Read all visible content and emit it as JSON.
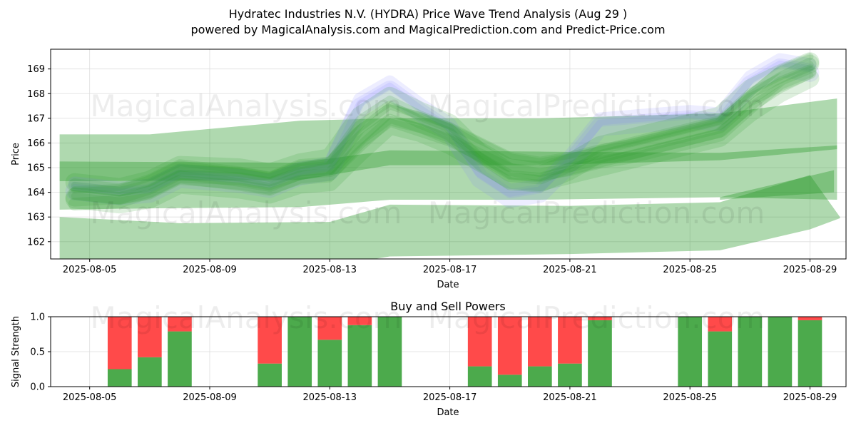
{
  "header": {
    "title_line1": "Hydratec Industries N.V. (HYDRA) Price Wave Trend Analysis (Aug 29 )",
    "title_line2": "powered by MagicalAnalysis.com and MagicalPrediction.com and Predict-Price.com"
  },
  "watermarks": [
    "MagicalAnalysis.com",
    "MagicalPrediction.com"
  ],
  "colors": {
    "green": "#2e9a2e",
    "blue": "#7f7fff",
    "buy": "#4caa4c",
    "sell": "#ff4a4a",
    "grid": "#dddddd"
  },
  "chart_data": [
    {
      "type": "area",
      "title": "",
      "xlabel": "Date",
      "ylabel": "Price",
      "xlim": [
        "2025-08-04",
        "2025-08-30"
      ],
      "ylim": [
        161.3,
        169.8
      ],
      "x_ticks": [
        "2025-08-05",
        "2025-08-09",
        "2025-08-13",
        "2025-08-17",
        "2025-08-21",
        "2025-08-25",
        "2025-08-29"
      ],
      "y_ticks": [
        162,
        163,
        164,
        165,
        166,
        167,
        168,
        169
      ],
      "grid": true,
      "bands": [
        {
          "name": "",
          "color": "green",
          "x": [
            "2025-08-04",
            "2025-08-07",
            "2025-08-12",
            "2025-08-15",
            "2025-08-20",
            "2025-08-26",
            "2025-08-29.9"
          ],
          "upper": [
            166.35,
            166.35,
            166.9,
            167.0,
            167.0,
            167.2,
            167.8
          ],
          "lower": [
            163.3,
            163.35,
            163.4,
            163.7,
            163.7,
            163.8,
            163.7
          ]
        },
        {
          "name": "",
          "color": "green",
          "x": [
            "2025-08-04",
            "2025-08-08",
            "2025-08-13",
            "2025-08-15",
            "2025-08-21",
            "2025-08-26",
            "2025-08-29",
            "2025-08-30"
          ],
          "upper": [
            163.0,
            162.75,
            162.8,
            163.5,
            163.45,
            163.6,
            164.7,
            163.0
          ],
          "lower": [
            161.2,
            160.9,
            161.0,
            161.4,
            161.5,
            161.65,
            162.5,
            162.95
          ]
        },
        {
          "name": "",
          "color": "green",
          "x": [
            "2025-08-04",
            "2025-08-12",
            "2025-08-15",
            "2025-08-20",
            "2025-08-26",
            "2025-08-29.9"
          ],
          "upper": [
            165.25,
            165.2,
            165.7,
            165.65,
            165.6,
            165.9
          ],
          "lower": [
            164.45,
            164.5,
            165.1,
            165.1,
            165.3,
            165.75
          ]
        },
        {
          "name": "",
          "color": "green",
          "x": [
            "2025-08-26",
            "2025-08-29.8"
          ],
          "upper": [
            163.8,
            164.9
          ],
          "lower": [
            163.7,
            164.0
          ]
        }
      ],
      "price_waves": {
        "x": [
          "2025-08-04.5",
          "2025-08-06",
          "2025-08-07",
          "2025-08-08",
          "2025-08-10",
          "2025-08-11",
          "2025-08-12",
          "2025-08-13",
          "2025-08-14",
          "2025-08-15",
          "2025-08-16",
          "2025-08-17",
          "2025-08-18",
          "2025-08-19",
          "2025-08-20",
          "2025-08-21",
          "2025-08-22",
          "2025-08-23",
          "2025-08-24",
          "2025-08-25",
          "2025-08-26",
          "2025-08-27",
          "2025-08-28",
          "2025-08-29"
        ],
        "series": [
          {
            "name": "",
            "color": "blue",
            "values": [
              164.2,
              164.0,
              164.1,
              164.7,
              164.5,
              164.3,
              164.8,
              165.0,
              167.6,
              168.3,
              167.4,
              166.6,
              164.7,
              163.9,
              164.1,
              165.3,
              166.8,
              166.9,
              167.0,
              167.1,
              167.0,
              168.5,
              169.2,
              169.0
            ]
          },
          {
            "name": "",
            "color": "green",
            "values": [
              164.1,
              163.9,
              164.2,
              164.8,
              164.7,
              164.5,
              164.9,
              165.1,
              166.8,
              167.6,
              167.0,
              166.5,
              165.3,
              164.5,
              164.4,
              164.9,
              165.6,
              165.9,
              166.2,
              166.5,
              166.8,
              167.9,
              168.5,
              169.0
            ]
          },
          {
            "name": "",
            "color": "green",
            "values": [
              164.0,
              163.8,
              164.0,
              164.6,
              164.4,
              164.2,
              164.6,
              164.7,
              165.9,
              167.0,
              166.7,
              166.2,
              165.5,
              164.8,
              164.7,
              165.0,
              165.3,
              165.6,
              165.9,
              166.2,
              166.5,
              167.5,
              168.3,
              168.9
            ]
          },
          {
            "name": "",
            "color": "green",
            "values": [
              163.8,
              163.9,
              164.3,
              164.9,
              164.6,
              164.4,
              164.9,
              165.0,
              166.3,
              167.2,
              166.8,
              166.4,
              165.8,
              165.2,
              165.0,
              165.2,
              165.5,
              165.7,
              166.0,
              166.3,
              166.6,
              167.7,
              168.7,
              169.2
            ]
          }
        ]
      }
    },
    {
      "type": "bar",
      "title": "Buy and Sell Powers",
      "xlabel": "Date",
      "ylabel": "Signal Strength",
      "xlim": [
        "2025-08-04",
        "2025-08-30"
      ],
      "ylim": [
        0,
        1.0
      ],
      "x_ticks": [
        "2025-08-05",
        "2025-08-09",
        "2025-08-13",
        "2025-08-17",
        "2025-08-21",
        "2025-08-25",
        "2025-08-29"
      ],
      "y_ticks": [
        "0.0",
        "0.5",
        "1.0"
      ],
      "grid": true,
      "dates": [
        "2025-08-06",
        "2025-08-07",
        "2025-08-08",
        "2025-08-11",
        "2025-08-12",
        "2025-08-13",
        "2025-08-14",
        "2025-08-15",
        "2025-08-18",
        "2025-08-19",
        "2025-08-20",
        "2025-08-21",
        "2025-08-22",
        "2025-08-25",
        "2025-08-26",
        "2025-08-27",
        "2025-08-28",
        "2025-08-29"
      ],
      "series": [
        {
          "name": "",
          "color": "buy",
          "values": [
            0.25,
            0.42,
            0.79,
            0.33,
            1.0,
            0.67,
            0.88,
            1.0,
            0.29,
            0.17,
            0.29,
            0.33,
            0.95,
            1.0,
            0.79,
            1.0,
            1.0,
            0.95
          ]
        },
        {
          "name": "",
          "color": "sell",
          "values": [
            0.75,
            0.58,
            0.21,
            0.67,
            0.0,
            0.33,
            0.12,
            0.0,
            0.71,
            0.83,
            0.71,
            0.67,
            0.05,
            0.0,
            0.21,
            0.0,
            0.0,
            0.05
          ]
        }
      ]
    }
  ]
}
